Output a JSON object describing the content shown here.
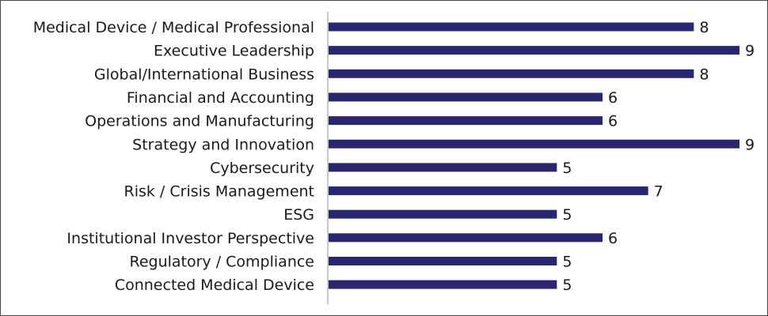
{
  "chart_data": {
    "type": "bar",
    "orientation": "horizontal",
    "categories": [
      "Medical Device / Medical Professional",
      "Executive Leadership",
      "Global/International Business",
      "Financial and Accounting",
      "Operations and Manufacturing",
      "Strategy and Innovation",
      "Cybersecurity",
      "Risk / Crisis Management",
      "ESG",
      "Institutional Investor Perspective",
      "Regulatory / Compliance",
      "Connected Medical Device"
    ],
    "values": [
      8,
      9,
      8,
      6,
      6,
      9,
      5,
      7,
      5,
      6,
      5,
      5
    ],
    "xlim": [
      0,
      9
    ],
    "grid": false,
    "legend": "none",
    "colors": {
      "bar": "#2b2670",
      "axis": "#c8c8c8",
      "text": "#1a1a1a"
    }
  }
}
